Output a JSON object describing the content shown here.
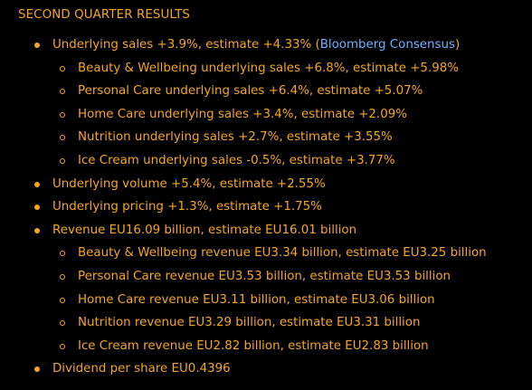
{
  "heading": "SECOND QUARTER RESULTS",
  "colors": {
    "background": "#000000",
    "text": "#f5a623",
    "link": "#6fb3ff"
  },
  "icons": {
    "primary_bullet": "filled-circle-bullet-icon",
    "secondary_bullet": "hollow-circle-bullet-icon"
  },
  "items": [
    {
      "text_before": "Underlying sales +3.9%, estimate +4.33% (",
      "link": "Bloomberg Consensus",
      "text_after": ")"
    },
    {
      "text": "Beauty & Wellbeing underlying sales +6.8%, estimate +5.98%"
    },
    {
      "text": "Personal Care underlying sales +6.4%, estimate +5.07%"
    },
    {
      "text": "Home Care underlying sales +3.4%, estimate +2.09%"
    },
    {
      "text": "Nutrition underlying sales +2.7%, estimate +3.55%"
    },
    {
      "text": "Ice Cream underlying sales -0.5%, estimate +3.77%"
    },
    {
      "text": "Underlying volume +5.4%, estimate +2.55%"
    },
    {
      "text": "Underlying pricing +1.3%, estimate +1.75%"
    },
    {
      "text": "Revenue EU16.09 billion, estimate EU16.01 billion"
    },
    {
      "text": "Beauty & Wellbeing revenue EU3.34 billion, estimate EU3.25 billion"
    },
    {
      "text": "Personal Care revenue EU3.53 billion, estimate EU3.53 billion"
    },
    {
      "text": "Home Care revenue EU3.11 billion, estimate EU3.06 billion"
    },
    {
      "text": "Nutrition revenue EU3.29 billion, estimate EU3.31 billion"
    },
    {
      "text": "Ice Cream revenue EU2.82 billion, estimate EU2.83 billion"
    },
    {
      "text": "Dividend per share EU0.4396"
    }
  ]
}
